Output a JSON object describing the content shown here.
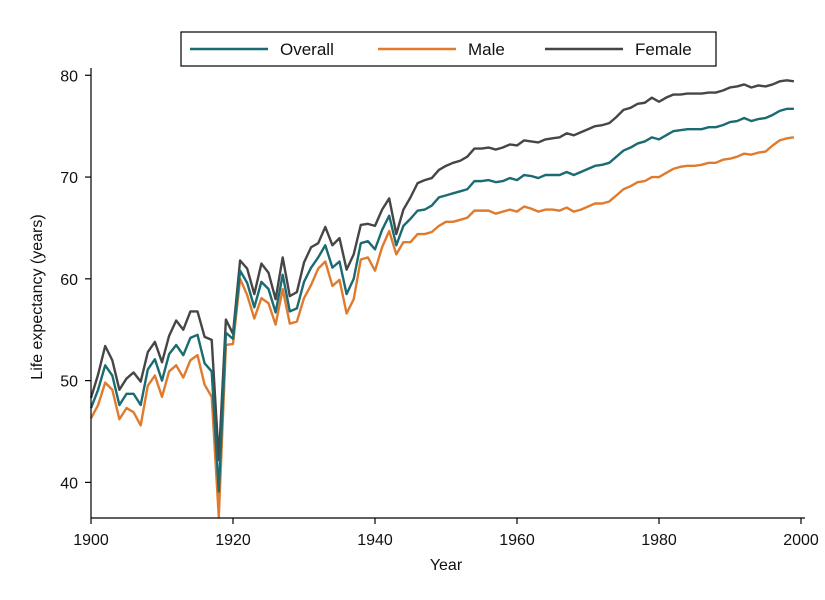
{
  "chart_data": {
    "type": "line",
    "title": "",
    "xlabel": "Year",
    "ylabel": "Life expectancy (years)",
    "xlim": [
      1900,
      2000
    ],
    "ylim": [
      36.5,
      81.5
    ],
    "xticks": [
      1900,
      1920,
      1940,
      1960,
      1980,
      2000
    ],
    "yticks": [
      40,
      50,
      60,
      70,
      80
    ],
    "grid": false,
    "legend_position": "top",
    "x": [
      1900,
      1901,
      1902,
      1903,
      1904,
      1905,
      1906,
      1907,
      1908,
      1909,
      1910,
      1911,
      1912,
      1913,
      1914,
      1915,
      1916,
      1917,
      1918,
      1919,
      1920,
      1921,
      1922,
      1923,
      1924,
      1925,
      1926,
      1927,
      1928,
      1929,
      1930,
      1931,
      1932,
      1933,
      1934,
      1935,
      1936,
      1937,
      1938,
      1939,
      1940,
      1941,
      1942,
      1943,
      1944,
      1945,
      1946,
      1947,
      1948,
      1949,
      1950,
      1951,
      1952,
      1953,
      1954,
      1955,
      1956,
      1957,
      1958,
      1959,
      1960,
      1961,
      1962,
      1963,
      1964,
      1965,
      1966,
      1967,
      1968,
      1969,
      1970,
      1971,
      1972,
      1973,
      1974,
      1975,
      1976,
      1977,
      1978,
      1979,
      1980,
      1981,
      1982,
      1983,
      1984,
      1985,
      1986,
      1987,
      1988,
      1989,
      1990,
      1991,
      1992,
      1993,
      1994,
      1995,
      1996,
      1997,
      1998,
      1999
    ],
    "series": [
      {
        "name": "Overall",
        "color": "#1a6b72",
        "values": [
          47.3,
          49.1,
          51.5,
          50.5,
          47.6,
          48.7,
          48.7,
          47.6,
          51.1,
          52.1,
          50.0,
          52.6,
          53.5,
          52.5,
          54.2,
          54.5,
          51.7,
          50.9,
          39.1,
          54.7,
          54.1,
          60.8,
          59.6,
          57.2,
          59.7,
          59.0,
          56.7,
          60.4,
          56.8,
          57.1,
          59.7,
          61.1,
          62.1,
          63.3,
          61.1,
          61.7,
          58.5,
          60.0,
          63.5,
          63.7,
          62.9,
          64.8,
          66.2,
          63.3,
          65.2,
          65.9,
          66.7,
          66.8,
          67.2,
          68.0,
          68.2,
          68.4,
          68.6,
          68.8,
          69.6,
          69.6,
          69.7,
          69.5,
          69.6,
          69.9,
          69.7,
          70.2,
          70.1,
          69.9,
          70.2,
          70.2,
          70.2,
          70.5,
          70.2,
          70.5,
          70.8,
          71.1,
          71.2,
          71.4,
          72.0,
          72.6,
          72.9,
          73.3,
          73.5,
          73.9,
          73.7,
          74.1,
          74.5,
          74.6,
          74.7,
          74.7,
          74.7,
          74.9,
          74.9,
          75.1,
          75.4,
          75.5,
          75.8,
          75.5,
          75.7,
          75.8,
          76.1,
          76.5,
          76.7,
          76.7
        ]
      },
      {
        "name": "Male",
        "color": "#e07b2e",
        "values": [
          46.3,
          47.6,
          49.8,
          49.1,
          46.2,
          47.3,
          46.9,
          45.6,
          49.5,
          50.5,
          48.4,
          50.9,
          51.5,
          50.3,
          52.0,
          52.5,
          49.6,
          48.4,
          36.6,
          53.5,
          53.6,
          60.0,
          58.4,
          56.1,
          58.1,
          57.6,
          55.5,
          59.0,
          55.6,
          55.8,
          58.1,
          59.4,
          61.0,
          61.7,
          59.3,
          59.9,
          56.6,
          58.0,
          61.9,
          62.1,
          60.8,
          63.1,
          64.7,
          62.4,
          63.6,
          63.6,
          64.4,
          64.4,
          64.6,
          65.2,
          65.6,
          65.6,
          65.8,
          66.0,
          66.7,
          66.7,
          66.7,
          66.4,
          66.6,
          66.8,
          66.6,
          67.1,
          66.9,
          66.6,
          66.8,
          66.8,
          66.7,
          67.0,
          66.6,
          66.8,
          67.1,
          67.4,
          67.4,
          67.6,
          68.2,
          68.8,
          69.1,
          69.5,
          69.6,
          70.0,
          70.0,
          70.4,
          70.8,
          71.0,
          71.1,
          71.1,
          71.2,
          71.4,
          71.4,
          71.7,
          71.8,
          72.0,
          72.3,
          72.2,
          72.4,
          72.5,
          73.1,
          73.6,
          73.8,
          73.9
        ]
      },
      {
        "name": "Female",
        "color": "#464646",
        "values": [
          48.3,
          50.6,
          53.4,
          52.0,
          49.1,
          50.2,
          50.8,
          49.9,
          52.8,
          53.8,
          51.8,
          54.4,
          55.9,
          55.0,
          56.8,
          56.8,
          54.3,
          54.0,
          42.2,
          56.0,
          54.6,
          61.8,
          61.0,
          58.5,
          61.5,
          60.6,
          58.0,
          62.1,
          58.3,
          58.7,
          61.6,
          63.1,
          63.5,
          65.1,
          63.3,
          64.0,
          60.9,
          62.4,
          65.3,
          65.4,
          65.2,
          66.8,
          67.9,
          64.4,
          66.8,
          68.0,
          69.4,
          69.7,
          69.9,
          70.7,
          71.1,
          71.4,
          71.6,
          72.0,
          72.8,
          72.8,
          72.9,
          72.7,
          72.9,
          73.2,
          73.1,
          73.6,
          73.5,
          73.4,
          73.7,
          73.8,
          73.9,
          74.3,
          74.1,
          74.4,
          74.7,
          75.0,
          75.1,
          75.3,
          75.9,
          76.6,
          76.8,
          77.2,
          77.3,
          77.8,
          77.4,
          77.8,
          78.1,
          78.1,
          78.2,
          78.2,
          78.2,
          78.3,
          78.3,
          78.5,
          78.8,
          78.9,
          79.1,
          78.8,
          79.0,
          78.9,
          79.1,
          79.4,
          79.5,
          79.4
        ]
      }
    ]
  }
}
